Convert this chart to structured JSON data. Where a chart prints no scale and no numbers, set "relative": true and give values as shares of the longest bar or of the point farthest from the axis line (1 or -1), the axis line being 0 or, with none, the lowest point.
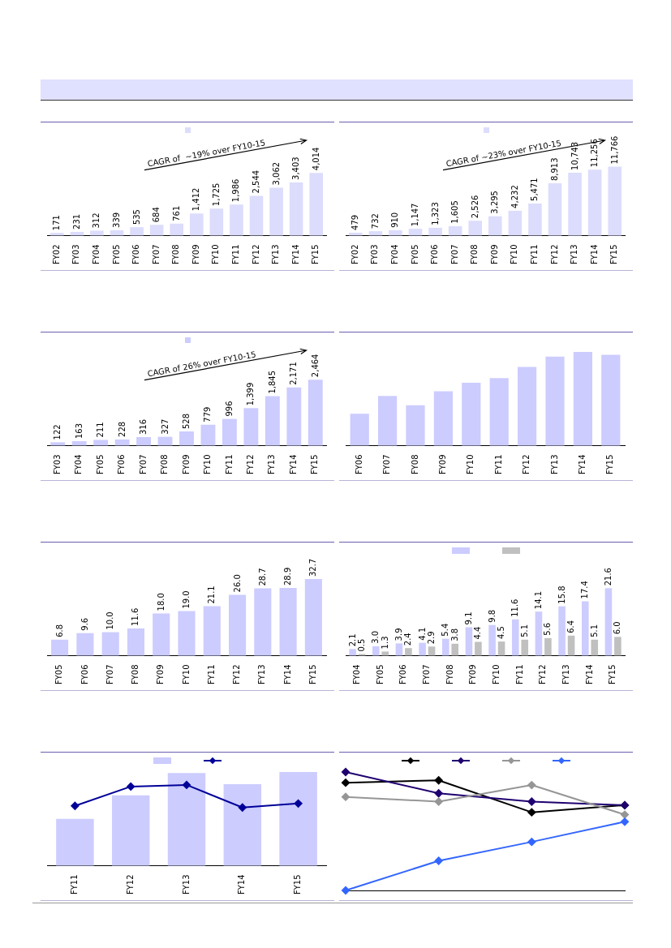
{
  "chart_data": [
    {
      "type": "bar",
      "tick_labels": "x",
      "grid": false,
      "annotations": [
        "CAGR of  ~19% over FY10-15"
      ],
      "categories": [
        "FY02",
        "FY03",
        "FY04",
        "FY05",
        "FY06",
        "FY07",
        "FY08",
        "FY09",
        "FY10",
        "FY11",
        "FY12",
        "FY13",
        "FY14",
        "FY15"
      ],
      "series": [
        {
          "color": "#dcdcfc",
          "values": [
            171,
            231,
            312,
            339,
            535,
            684,
            761,
            1412,
            1725,
            1986,
            2544,
            3062,
            3403,
            4014
          ],
          "value_labels": [
            "171",
            "231",
            "312",
            "339",
            "535",
            "684",
            "761",
            "1,412",
            "1,725",
            "1,986",
            "2,544",
            "3,062",
            "3,403",
            "4,014"
          ]
        }
      ]
    },
    {
      "type": "bar",
      "tick_labels": "x",
      "grid": false,
      "annotations": [
        "CAGR of ~23% over FY10-15"
      ],
      "categories": [
        "FY02",
        "FY03",
        "FY04",
        "FY05",
        "FY06",
        "FY07",
        "FY08",
        "FY09",
        "FY10",
        "FY11",
        "FY12",
        "FY13",
        "FY14",
        "FY15"
      ],
      "series": [
        {
          "color": "#dcdcfc",
          "values": [
            479,
            732,
            910,
            1147,
            1323,
            1605,
            2526,
            3295,
            4232,
            5471,
            8913,
            10743,
            11256,
            11766
          ],
          "value_labels": [
            "479",
            "732",
            "910",
            "1,147",
            "1,323",
            "1,605",
            "2,526",
            "3,295",
            "4,232",
            "5,471",
            "8,913",
            "10,743",
            "11,256",
            "11,766"
          ]
        }
      ]
    },
    {
      "type": "bar",
      "tick_labels": "x",
      "grid": false,
      "annotations": [
        "CAGR of 26% over FY10-15"
      ],
      "categories": [
        "FY03",
        "FY04",
        "FY05",
        "FY06",
        "FY07",
        "FY08",
        "FY09",
        "FY10",
        "FY11",
        "FY12",
        "FY13",
        "FY14",
        "FY15"
      ],
      "series": [
        {
          "color": "#ccccff",
          "values": [
            122,
            163,
            211,
            228,
            316,
            327,
            528,
            779,
            996,
            1399,
            1845,
            2171,
            2464
          ],
          "value_labels": [
            "122",
            "163",
            "211",
            "228",
            "316",
            "327",
            "528",
            "779",
            "996",
            "1,399",
            "1,845",
            "2,171",
            "2,464"
          ]
        }
      ]
    },
    {
      "type": "bar",
      "tick_labels": "x",
      "grid": false,
      "relative": true,
      "categories": [
        "FY06",
        "FY07",
        "FY08",
        "FY09",
        "FY10",
        "FY11",
        "FY12",
        "FY13",
        "FY14",
        "FY15"
      ],
      "series": [
        {
          "color": "#ccccff",
          "values": [
            0.34,
            0.53,
            0.43,
            0.58,
            0.67,
            0.72,
            0.84,
            0.95,
            1,
            0.97
          ]
        }
      ]
    },
    {
      "type": "bar",
      "tick_labels": "x",
      "grid": false,
      "categories": [
        "FY05",
        "FY06",
        "FY07",
        "FY08",
        "FY09",
        "FY10",
        "FY11",
        "FY12",
        "FY13",
        "FY14",
        "FY15"
      ],
      "series": [
        {
          "color": "#ccccff",
          "values": [
            6.8,
            9.6,
            10.0,
            11.6,
            18.0,
            19.0,
            21.1,
            26.0,
            28.7,
            28.9,
            32.7
          ],
          "value_labels": [
            "6.8",
            "9.6",
            "10.0",
            "11.6",
            "18.0",
            "19.0",
            "21.1",
            "26.0",
            "28.7",
            "28.9",
            "32.7"
          ]
        }
      ]
    },
    {
      "type": "bar",
      "tick_labels": "x",
      "grid": false,
      "categories": [
        "FY04",
        "FY05",
        "FY06",
        "FY07",
        "FY08",
        "FY09",
        "FY10",
        "FY11",
        "FY12",
        "FY13",
        "FY14",
        "FY15"
      ],
      "series": [
        {
          "color": "#ccccff",
          "values": [
            2.1,
            3.0,
            3.9,
            4.1,
            5.4,
            9.1,
            9.8,
            11.6,
            14.1,
            15.8,
            17.4,
            21.6
          ],
          "value_labels": [
            "2.1",
            "3.0",
            "3.9",
            "4.1",
            "5.4",
            "9.1",
            "9.8",
            "11.6",
            "14.1",
            "15.8",
            "17.4",
            "21.6"
          ]
        },
        {
          "color": "#c0c0c0",
          "values": [
            0.5,
            1.3,
            2.4,
            2.9,
            3.8,
            4.4,
            4.5,
            5.1,
            5.6,
            6.4,
            5.1,
            6.0
          ],
          "value_labels": [
            "0.5",
            "1.3",
            "2.4",
            "2.9",
            "3.8",
            "4.4",
            "4.5",
            "5.1",
            "5.6",
            "6.4",
            "5.1",
            "6.0"
          ]
        }
      ]
    },
    {
      "type": "bar",
      "tick_labels": "x",
      "grid": false,
      "relative": true,
      "marker": "diamond",
      "categories": [
        "FY11",
        "FY12",
        "FY13",
        "FY14",
        "FY15"
      ],
      "series": [
        {
          "color": "#ccccff",
          "values": [
            0.5,
            0.75,
            0.99,
            0.87,
            1
          ]
        },
        {
          "type": "line",
          "axis": "y2",
          "color": "#000099",
          "values": [
            0.74,
            0.98,
            1,
            0.72,
            0.77
          ]
        }
      ]
    },
    {
      "type": "line",
      "tick_labels": false,
      "grid": false,
      "relative": true,
      "marker": "diamond",
      "categories": [
        null,
        null,
        null,
        null
      ],
      "series": [
        {
          "color": "#000000",
          "values": [
            0.91,
            0.93,
            0.66,
            0.72
          ]
        },
        {
          "color": "#200070",
          "values": [
            1,
            0.82,
            0.75,
            0.72
          ]
        },
        {
          "color": "#969696",
          "values": [
            0.79,
            0.75,
            0.89,
            0.64
          ]
        },
        {
          "color": "#3366ff",
          "values": [
            0,
            0.25,
            0.41,
            0.58
          ]
        }
      ]
    }
  ]
}
